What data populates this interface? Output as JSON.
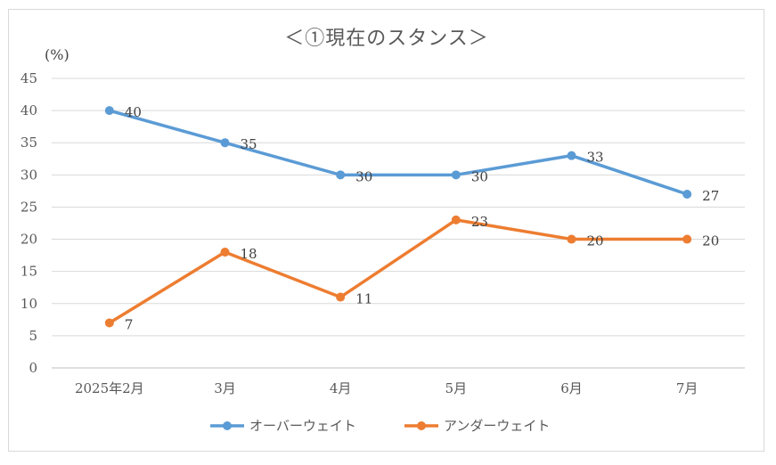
{
  "chart_data": {
    "type": "line",
    "title": "＜①現在のスタンス＞",
    "y_unit_label": "(%)",
    "categories": [
      "2025年2月",
      "3月",
      "4月",
      "5月",
      "6月",
      "7月"
    ],
    "ylim": [
      0,
      45
    ],
    "yticks": [
      0,
      5,
      10,
      15,
      20,
      25,
      30,
      35,
      40,
      45
    ],
    "grid": true,
    "legend_position": "bottom",
    "series": [
      {
        "name": "オーバーウェイト",
        "color": "#5b9bd5",
        "values": [
          40,
          35,
          30,
          30,
          33,
          27
        ]
      },
      {
        "name": "アンダーウェイト",
        "color": "#ed7d31",
        "values": [
          7,
          18,
          11,
          23,
          20,
          20
        ]
      }
    ]
  }
}
